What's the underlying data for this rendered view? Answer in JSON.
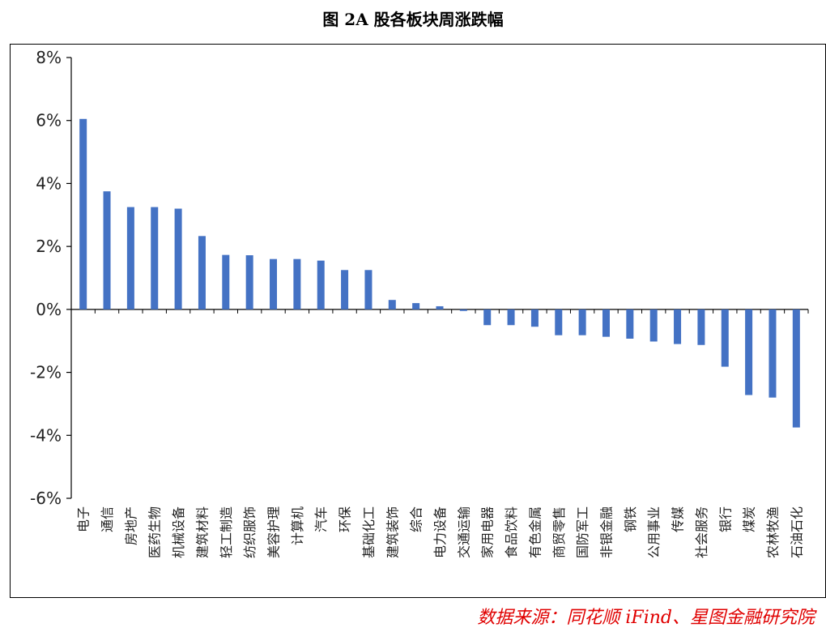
{
  "chart_data": {
    "type": "bar",
    "title": "图 2A 股各板块周涨跌幅",
    "xlabel": "",
    "ylabel": "",
    "ylim": [
      -6,
      8
    ],
    "yticks": [
      "8%",
      "6%",
      "4%",
      "2%",
      "0%",
      "-2%",
      "-4%",
      "-6%"
    ],
    "ytick_values": [
      8,
      6,
      4,
      2,
      0,
      -2,
      -4,
      -6
    ],
    "grid": false,
    "legend": "none",
    "bar_color": "#4472C4",
    "categories": [
      "电子",
      "通信",
      "房地产",
      "医药生物",
      "机械设备",
      "建筑材料",
      "轻工制造",
      "纺织服饰",
      "美容护理",
      "计算机",
      "汽车",
      "环保",
      "基础化工",
      "建筑装饰",
      "综合",
      "电力设备",
      "交通运输",
      "家用电器",
      "食品饮料",
      "有色金属",
      "商贸零售",
      "国防军工",
      "非银金融",
      "钢铁",
      "公用事业",
      "传媒",
      "社会服务",
      "银行",
      "煤炭",
      "农林牧渔",
      "石油石化"
    ],
    "values": [
      6.05,
      3.75,
      3.25,
      3.25,
      3.2,
      2.33,
      1.73,
      1.72,
      1.6,
      1.6,
      1.55,
      1.25,
      1.25,
      0.3,
      0.2,
      0.1,
      -0.05,
      -0.5,
      -0.5,
      -0.55,
      -0.82,
      -0.82,
      -0.87,
      -0.93,
      -1.02,
      -1.1,
      -1.13,
      -1.82,
      -2.72,
      -2.8,
      -3.75
    ]
  },
  "source_note": "数据来源：同花顺 iFind、星图金融研究院"
}
